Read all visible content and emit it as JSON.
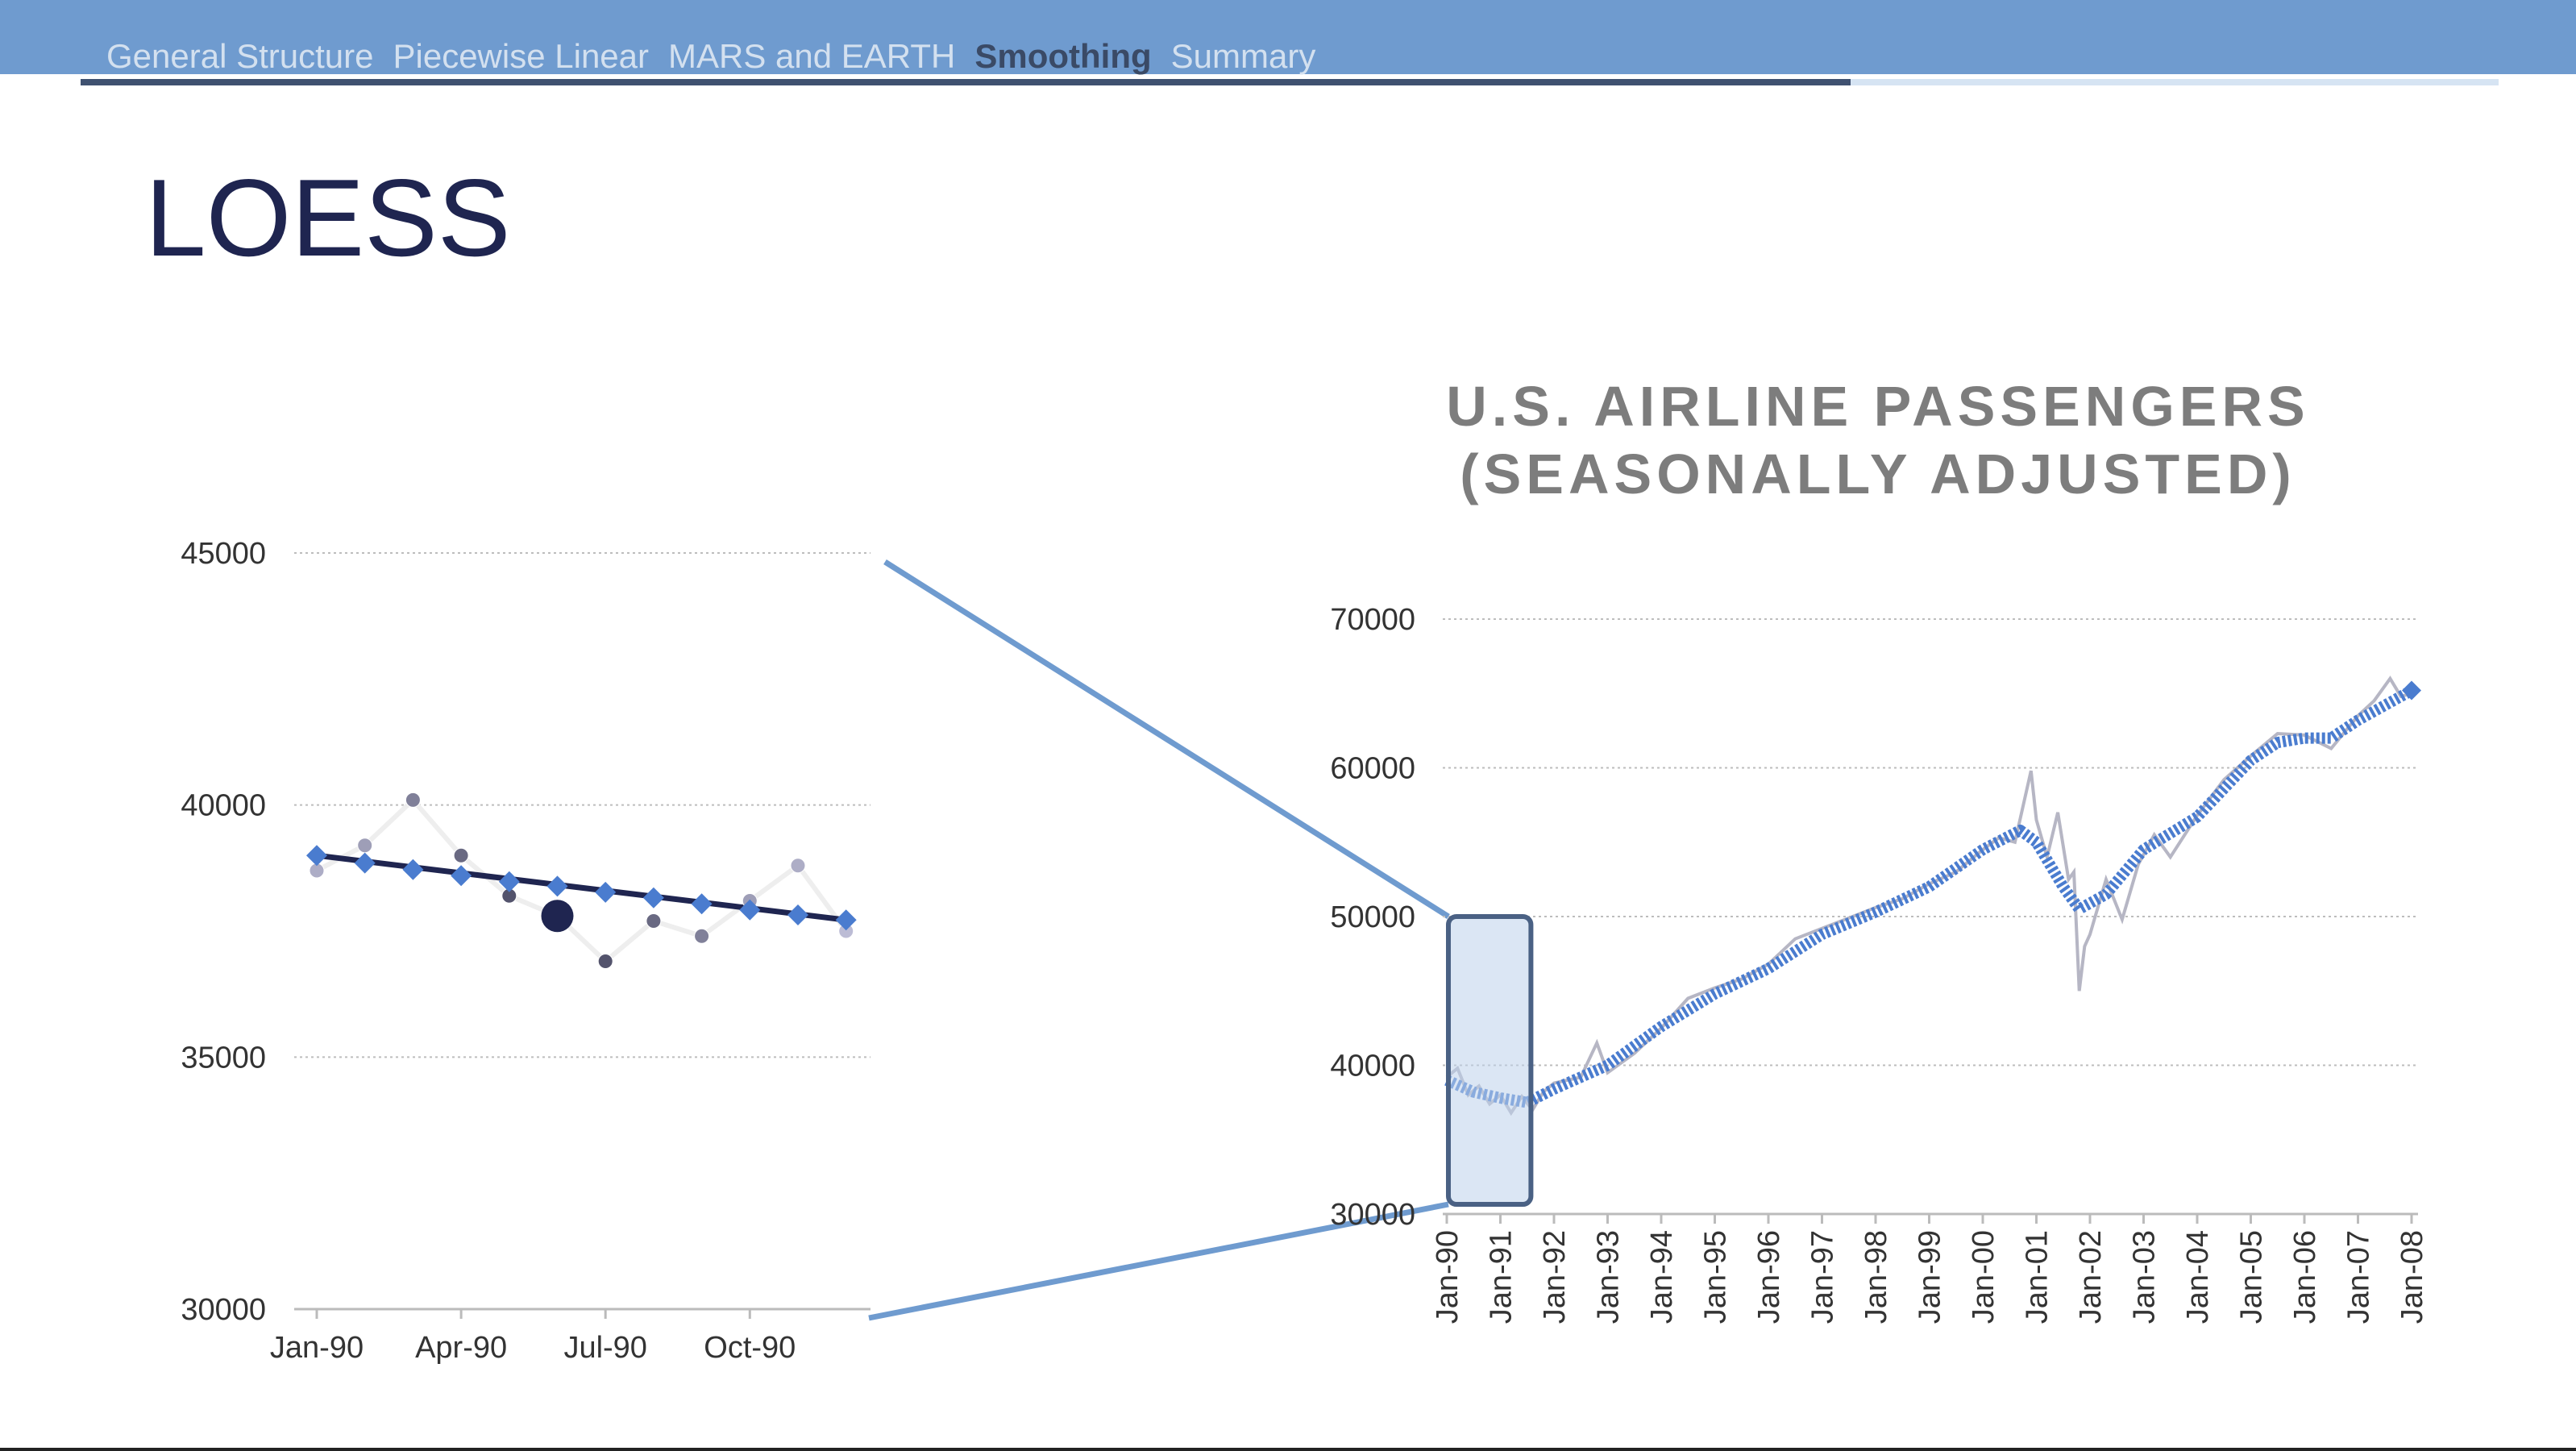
{
  "nav": {
    "items": [
      "General Structure",
      "Piecewise Linear",
      "MARS and EARTH",
      "Smoothing",
      "Summary"
    ],
    "active_index": 3
  },
  "slide_title": "LOESS",
  "colors": {
    "header_bg": "#6f9bcf",
    "nav_active": "#3a4a66",
    "nav_inactive": "#d3e0ef",
    "title": "#1f2550",
    "accent_blue": "#4a7ccf",
    "connector": "#6f9bcf",
    "fit_line": "#1f2550"
  },
  "chart_data": [
    {
      "type": "scatter",
      "title": "",
      "xlabel": "",
      "ylabel": "",
      "x_tick_labels": [
        "Jan-90",
        "Apr-90",
        "Jul-90",
        "Oct-90"
      ],
      "y_ticks": [
        30000,
        35000,
        40000,
        45000
      ],
      "ylim": [
        30000,
        45000
      ],
      "grid": true,
      "x": [
        1,
        2,
        3,
        4,
        5,
        6,
        7,
        8,
        9,
        10,
        11,
        12
      ],
      "series": [
        {
          "kind": "raw",
          "values": [
            38700,
            39200,
            40100,
            39000,
            38200,
            37800,
            36900,
            37700,
            37400,
            38100,
            38800,
            37500
          ],
          "weights": [
            0.25,
            0.35,
            0.55,
            0.7,
            0.85,
            1.0,
            0.85,
            0.7,
            0.55,
            0.35,
            0.25,
            0.15
          ]
        },
        {
          "kind": "smoothed",
          "values": [
            39000,
            38850,
            38720,
            38600,
            38480,
            38390,
            38270,
            38160,
            38040,
            37920,
            37820,
            37720
          ]
        }
      ],
      "focus_index": 6,
      "fit_line": {
        "from": [
          1,
          39000
        ],
        "to": [
          12,
          37720
        ]
      }
    },
    {
      "type": "line",
      "title": "U.S. AIRLINE PASSENGERS (SEASONALLY ADJUSTED)",
      "xlabel": "",
      "ylabel": "",
      "x_tick_labels": [
        "Jan-90",
        "Jan-91",
        "Jan-92",
        "Jan-93",
        "Jan-94",
        "Jan-95",
        "Jan-96",
        "Jan-97",
        "Jan-98",
        "Jan-99",
        "Jan-00",
        "Jan-01",
        "Jan-02",
        "Jan-03",
        "Jan-04",
        "Jan-05",
        "Jan-06",
        "Jan-07",
        "Jan-08"
      ],
      "y_ticks": [
        30000,
        40000,
        50000,
        60000,
        70000
      ],
      "ylim": [
        30000,
        70000
      ],
      "xlim": [
        1990,
        2008
      ],
      "grid": true,
      "series": [
        {
          "name": "",
          "kind": "smoothed",
          "x": [
            1990,
            1990.5,
            1991,
            1991.5,
            1992,
            1993,
            1994,
            1995,
            1996,
            1997,
            1998,
            1999,
            2000,
            2000.7,
            2001,
            2001.5,
            2001.8,
            2002.3,
            2003,
            2004,
            2005,
            2005.5,
            2006,
            2006.5,
            2007,
            2007.5,
            2008
          ],
          "values": [
            39000,
            38200,
            37800,
            37500,
            38400,
            40000,
            42600,
            44800,
            46500,
            48800,
            50300,
            52000,
            54500,
            55800,
            55000,
            52000,
            50500,
            51500,
            54500,
            56700,
            60500,
            61700,
            62000,
            62000,
            63200,
            64200,
            65200
          ]
        },
        {
          "name": "",
          "kind": "raw",
          "x": [
            1990,
            1990.2,
            1990.4,
            1990.6,
            1990.8,
            1991,
            1991.2,
            1991.4,
            1991.6,
            1991.8,
            1992,
            1992.5,
            1992.8,
            1993,
            1993.5,
            1994,
            1994.5,
            1995,
            1995.5,
            1996,
            1996.5,
            1997,
            1997.5,
            1998,
            1998.5,
            1999,
            1999.5,
            2000,
            2000.3,
            2000.6,
            2000.9,
            2001.0,
            2001.2,
            2001.4,
            2001.6,
            2001.7,
            2001.8,
            2001.9,
            2002.0,
            2002.3,
            2002.6,
            2002.9,
            2003.2,
            2003.5,
            2004,
            2004.5,
            2005,
            2005.5,
            2006,
            2006.5,
            2007,
            2007.3,
            2007.6,
            2007.8,
            2008
          ],
          "values": [
            39200,
            39800,
            38000,
            38600,
            37400,
            38000,
            36800,
            37900,
            37000,
            38200,
            38800,
            39200,
            41500,
            39500,
            40800,
            42500,
            44500,
            45200,
            45800,
            46800,
            48500,
            49200,
            49900,
            50600,
            51200,
            52200,
            53000,
            54500,
            55300,
            55000,
            59800,
            56500,
            54000,
            57000,
            52500,
            53000,
            45000,
            48000,
            48800,
            52500,
            49800,
            53500,
            55500,
            54000,
            56800,
            59200,
            60800,
            62300,
            62200,
            61300,
            63500,
            64500,
            66000,
            64800,
            65000
          ]
        }
      ],
      "highlight": {
        "from": "Jan-90",
        "to": "Jan-91",
        "y_from": 30000,
        "y_to": 50000
      }
    }
  ]
}
